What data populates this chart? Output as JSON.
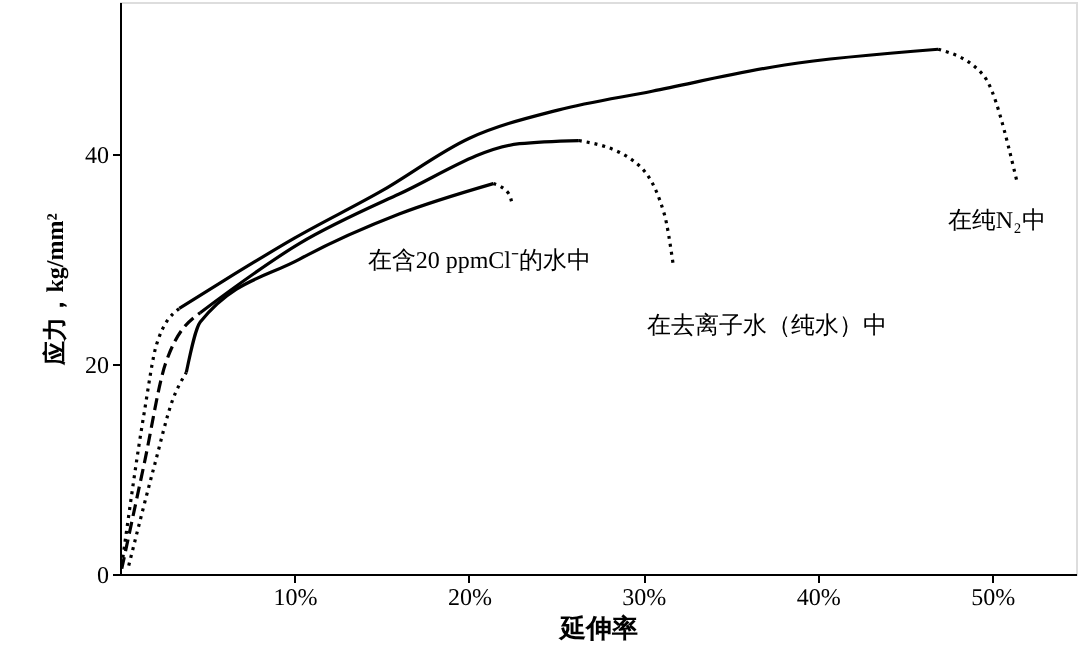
{
  "chart_data": {
    "type": "line",
    "xlabel": "延伸率",
    "ylabel": "应力，kg/mm²",
    "xlim": [
      0,
      54.8
    ],
    "ylim": [
      0,
      54.5
    ],
    "xticks": [
      {
        "value": 10,
        "label": "10%"
      },
      {
        "value": 20,
        "label": "20%"
      },
      {
        "value": 30,
        "label": "30%"
      },
      {
        "value": 40,
        "label": "40%"
      },
      {
        "value": 50,
        "label": "50%"
      }
    ],
    "yticks": [
      0,
      20,
      40
    ],
    "grid": false,
    "marker": "none",
    "series": [
      {
        "color": "#000000",
        "line_style": "dotted",
        "x": [
          0.1,
          1.4,
          2.1,
          3.4
        ],
        "values": [
          0.8,
          15.5,
          21.9,
          25.3
        ]
      },
      {
        "color": "#000000",
        "line_style": "solid",
        "x": [
          3.4,
          6,
          10,
          15,
          20,
          25.1,
          30.5,
          38.1,
          46.9
        ],
        "values": [
          25.3,
          28,
          32,
          36.5,
          41.5,
          44.2,
          46,
          48.5,
          50
        ]
      },
      {
        "name": "在纯N₂中",
        "color": "#000000",
        "line_style": "dotted",
        "x": [
          46.9,
          49.5,
          51.4
        ],
        "values": [
          50,
          47.5,
          37.5
        ]
      },
      {
        "color": "#000000",
        "line_style": "dashed",
        "x": [
          0.1,
          1.4,
          2.6,
          4.6
        ],
        "values": [
          0.5,
          10.6,
          20,
          24.9
        ]
      },
      {
        "color": "#000000",
        "line_style": "solid",
        "x": [
          4.6,
          10.3,
          16,
          22.9,
          26.3
        ],
        "values": [
          24.9,
          31.5,
          36.2,
          41,
          41.3
        ]
      },
      {
        "name": "在去离子水（纯水）中",
        "color": "#000000",
        "line_style": "dotted",
        "x": [
          26.3,
          29.4,
          31.2,
          31.7
        ],
        "values": [
          41.3,
          39.4,
          34.3,
          29.6
        ]
      },
      {
        "color": "#000000",
        "line_style": "dotted",
        "x": [
          0.5,
          2,
          3,
          3.8
        ],
        "values": [
          0.8,
          10.5,
          16.5,
          19.2
        ]
      },
      {
        "name": "在含20 ppmCl⁻的水中",
        "color": "#000000",
        "line_style": "solid",
        "x": [
          3.8,
          4.6,
          10.3,
          16,
          21.4
        ],
        "values": [
          19.2,
          24,
          30,
          34.3,
          37.2
        ]
      },
      {
        "color": "#000000",
        "line_style": "dotted",
        "x": [
          21.4,
          22.3,
          22.5
        ],
        "values": [
          37.2,
          36.2,
          35.1
        ]
      }
    ]
  }
}
